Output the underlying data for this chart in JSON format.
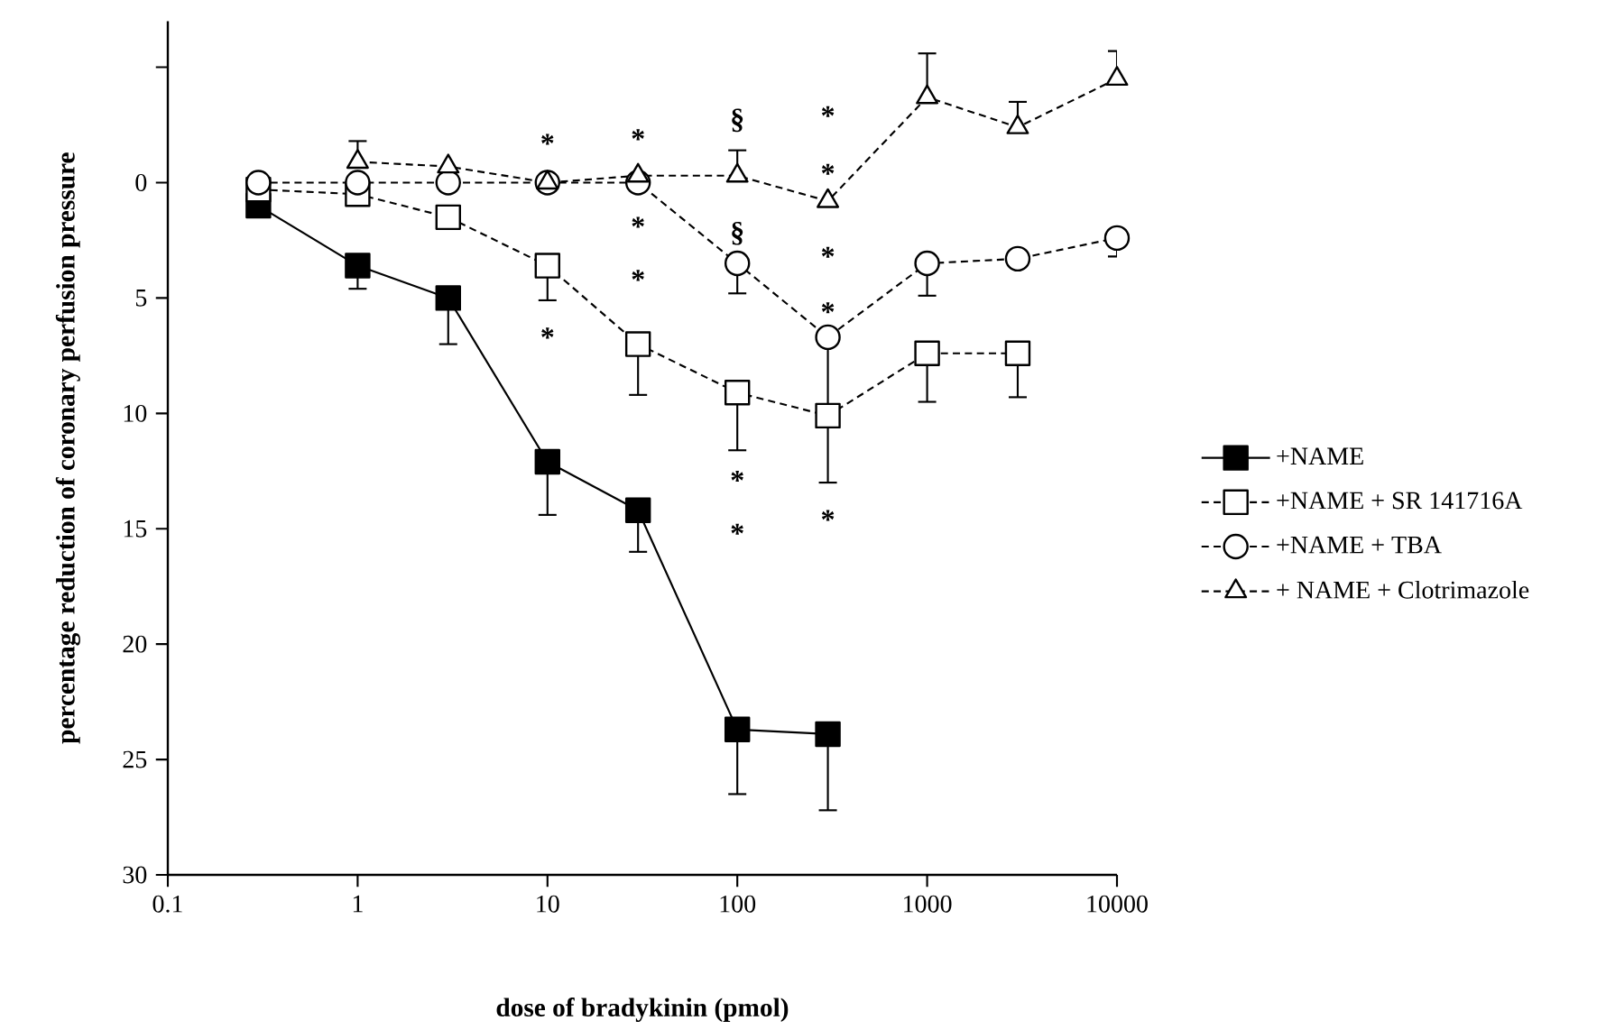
{
  "chart_data": {
    "type": "line",
    "xlabel": "dose of bradykinin (pmol)",
    "ylabel": "percentage reduction of coronary perfusion pressure",
    "log": "x",
    "xlim": [
      0.1,
      10000
    ],
    "xticks": [
      0.1,
      1,
      10,
      100,
      1000,
      10000
    ],
    "ylim": [
      30,
      -7
    ],
    "yticks": [
      {
        "value": -5,
        "label": null
      },
      0,
      5,
      10,
      15,
      20,
      25,
      30
    ],
    "grid": false,
    "legend": "right",
    "series": [
      {
        "name": "+NAME",
        "color": "#000000",
        "marker": "square",
        "line_style": "solid",
        "x": [
          0.3,
          1,
          3,
          10,
          30,
          100,
          300
        ],
        "values": [
          1.0,
          3.6,
          5.0,
          12.1,
          14.2,
          23.7,
          23.9
        ],
        "errors": [
          null,
          [
            3.6,
            4.6
          ],
          [
            5.0,
            7.0
          ],
          [
            12.1,
            14.4
          ],
          [
            14.2,
            16.0
          ],
          [
            23.7,
            26.5
          ],
          [
            23.9,
            27.2
          ]
        ]
      },
      {
        "name": "+NAME + SR 141716A",
        "color": "#000000",
        "marker": "square",
        "line_style": "dashed",
        "x": [
          0.3,
          1,
          3,
          10,
          30,
          100,
          300,
          1000,
          3000
        ],
        "values": [
          0.3,
          0.5,
          1.5,
          3.6,
          7.0,
          9.1,
          10.1,
          7.4,
          7.4
        ],
        "errors": [
          null,
          null,
          null,
          [
            3.6,
            5.1
          ],
          [
            7.0,
            9.2
          ],
          [
            9.1,
            11.6
          ],
          [
            10.1,
            13.0
          ],
          [
            7.4,
            9.5
          ],
          [
            7.4,
            9.3
          ]
        ]
      },
      {
        "name": "+NAME + TBA",
        "color": "#000000",
        "marker": "circle",
        "line_style": "dashed",
        "x": [
          0.3,
          1,
          3,
          10,
          30,
          100,
          300,
          1000,
          3000,
          10000
        ],
        "values": [
          0,
          0,
          0,
          0,
          0,
          3.5,
          6.7,
          3.5,
          3.3,
          2.4
        ],
        "errors": [
          null,
          null,
          null,
          null,
          null,
          [
            3.5,
            4.8
          ],
          [
            6.7,
            9.7
          ],
          [
            3.5,
            4.9
          ],
          null,
          [
            2.4,
            3.2
          ]
        ]
      },
      {
        "name": "+ NAME + Clotrimazole",
        "color": "#000000",
        "marker": "triangle",
        "line_style": "dashed",
        "x": [
          1,
          3,
          10,
          30,
          100,
          300,
          1000,
          3000,
          10000
        ],
        "values": [
          -0.9,
          -0.7,
          0,
          -0.3,
          -0.3,
          0.8,
          -3.7,
          -2.4,
          -4.5
        ],
        "errors": [
          [
            -1.8,
            -0.9
          ],
          null,
          null,
          null,
          [
            -1.4,
            -0.3
          ],
          null,
          [
            -5.6,
            -3.7
          ],
          [
            -3.5,
            -2.4
          ],
          [
            -5.7,
            -4.5
          ]
        ]
      }
    ],
    "annotations": [
      "*",
      "*",
      "*",
      "*",
      "*",
      "§",
      "§",
      "*",
      "*",
      "*",
      "*",
      "*",
      "*",
      "*"
    ]
  }
}
